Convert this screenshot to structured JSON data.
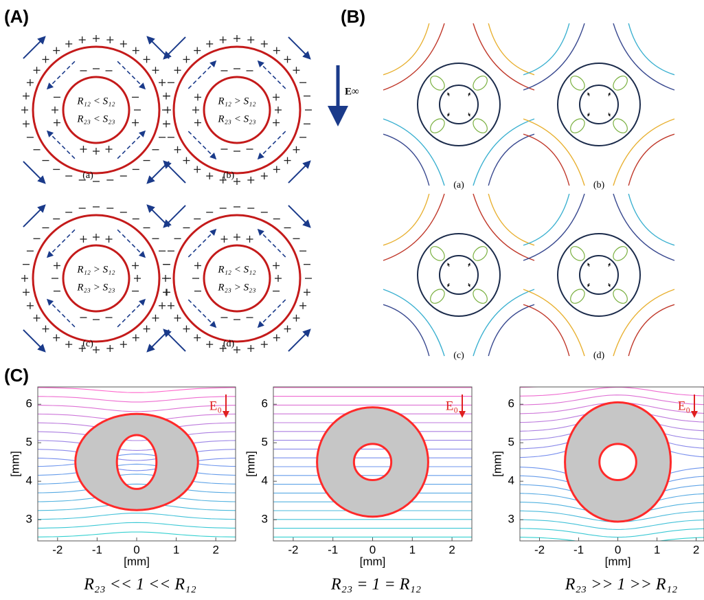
{
  "panel_a": {
    "label": "(A)",
    "field_label": "E∞",
    "diagrams": [
      {
        "line1": "R₁₂ < S₁₂",
        "line2": "R₂₃ < S₂₃",
        "caption": "(a)"
      },
      {
        "line1": "R₁₂ > S₁₂",
        "line2": "R₂₃ < S₂₃",
        "caption": "(b)"
      },
      {
        "line1": "R₁₂ > S₁₂",
        "line2": "R₂₃ > S₂₃",
        "caption": "(c)"
      },
      {
        "line1": "R₁₂ < S₁₂",
        "line2": "R₂₃ > S₂₃",
        "caption": "(d)"
      }
    ]
  },
  "panel_b": {
    "label": "(B)",
    "captions": [
      "(a)",
      "(b)",
      "(c)",
      "(d)"
    ]
  },
  "panel_c": {
    "label": "(C)",
    "plots": [
      {
        "xlim": [
          -2.5,
          2.5
        ],
        "ylim": [
          2.45,
          6.45
        ],
        "xticks": [
          -2,
          -1,
          0,
          1,
          2
        ],
        "yticks": [
          3,
          4,
          5,
          6
        ],
        "xlabel": "[mm]",
        "ylabel": "[mm]",
        "field_label": "E₀",
        "caption": "R₂₃ << 1 << R₁₂"
      },
      {
        "xlim": [
          -2.5,
          2.5
        ],
        "ylim": [
          2.45,
          6.45
        ],
        "xticks": [
          -2,
          -1,
          0,
          1,
          2
        ],
        "yticks": [
          3,
          4,
          5,
          6
        ],
        "xlabel": "[mm]",
        "ylabel": "[mm]",
        "field_label": "E₀",
        "caption": "R₂₃ = 1 = R₁₂"
      },
      {
        "xlim": [
          -2.5,
          2.2
        ],
        "ylim": [
          2.45,
          6.45
        ],
        "xticks": [
          -2,
          -1,
          0,
          1,
          2
        ],
        "yticks": [
          3,
          4,
          5,
          6
        ],
        "xlabel": "[mm]",
        "ylabel": "[mm]",
        "field_label": "E₀",
        "caption": "R₂₃ >> 1 >> R₁₂"
      }
    ]
  }
}
